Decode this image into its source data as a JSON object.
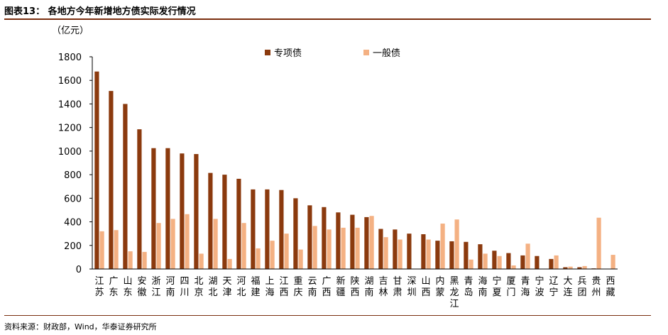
{
  "figure_title": "图表13： 各地方今年新增地方债实际发行情况",
  "source": "资料来源：财政部，Wind，华泰证券研究所",
  "colors": {
    "special": "#8B3A0E",
    "general": "#F4B183",
    "rule": "#7a2e0e"
  },
  "chart_data": {
    "type": "bar",
    "unit": "（亿元）",
    "ylim": [
      0,
      1800
    ],
    "yticks": [
      0,
      200,
      400,
      600,
      800,
      1000,
      1200,
      1400,
      1600,
      1800
    ],
    "legend": "top-center",
    "grid": false,
    "categories": [
      "江苏",
      "广东",
      "山东",
      "安徽",
      "浙江",
      "河南",
      "四川",
      "北京",
      "湖北",
      "天津",
      "河北",
      "福建",
      "上海",
      "江西",
      "重庆",
      "云南",
      "广西",
      "新疆",
      "陕西",
      "湖南",
      "吉林",
      "甘肃",
      "深圳",
      "山西",
      "内蒙",
      "黑龙江",
      "青岛",
      "海南",
      "宁夏",
      "厦门",
      "青海",
      "宁波",
      "辽宁",
      "大连",
      "兵团",
      "贵州",
      "西藏"
    ],
    "series": [
      {
        "name": "专项债",
        "values": [
          1675,
          1510,
          1400,
          1185,
          1025,
          1025,
          980,
          975,
          815,
          800,
          765,
          675,
          675,
          670,
          600,
          540,
          525,
          480,
          460,
          440,
          340,
          335,
          300,
          295,
          240,
          235,
          230,
          210,
          155,
          135,
          115,
          110,
          85,
          15,
          15,
          5,
          0
        ]
      },
      {
        "name": "一般债",
        "values": [
          320,
          330,
          150,
          145,
          390,
          425,
          465,
          130,
          425,
          85,
          390,
          175,
          240,
          300,
          165,
          365,
          335,
          350,
          350,
          450,
          270,
          250,
          0,
          250,
          385,
          420,
          80,
          130,
          110,
          30,
          215,
          0,
          115,
          20,
          25,
          435,
          120
        ]
      }
    ]
  }
}
